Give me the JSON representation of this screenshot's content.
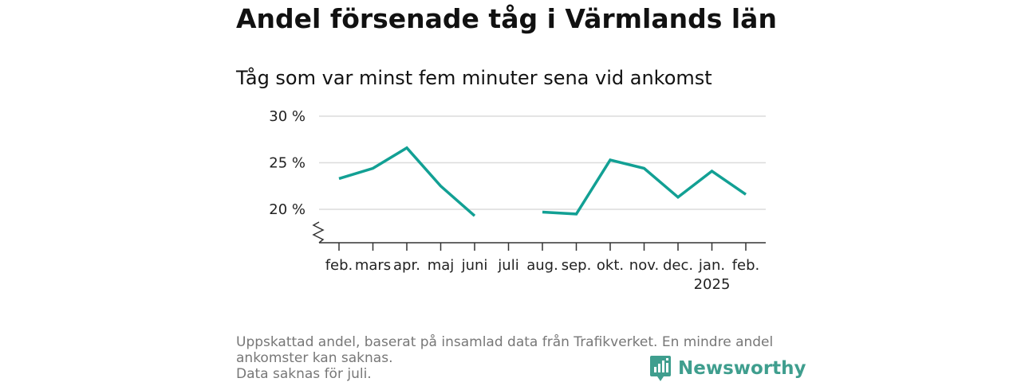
{
  "title": "Andel försenade tåg i Värmlands län",
  "subtitle": "Tåg som var minst fem minuter sena vid ankomst",
  "footnote_lines": [
    "Uppskattad andel, baserat på insamlad data från Trafikverket. En mindre andel",
    "ankomster kan saknas.",
    "Data saknas för juli."
  ],
  "brand": {
    "name": "Newsworthy",
    "color": "#3f9e8e"
  },
  "colors": {
    "line": "#12a094",
    "grid": "#dcdcdc",
    "axis": "#333333"
  },
  "chart_data": {
    "type": "line",
    "title": "Andel försenade tåg i Värmlands län",
    "subtitle": "Tåg som var minst fem minuter sena vid ankomst",
    "categories": [
      "feb.",
      "mars",
      "apr.",
      "maj",
      "juni",
      "juli",
      "aug.",
      "sep.",
      "okt.",
      "nov.",
      "dec.",
      "jan.",
      "feb."
    ],
    "category_sublabels": [
      "",
      "",
      "",
      "",
      "",
      "",
      "",
      "",
      "",
      "",
      "",
      "2025",
      ""
    ],
    "series": [
      {
        "values": [
          23.3,
          24.4,
          26.6,
          22.5,
          19.3,
          null,
          19.7,
          19.5,
          25.3,
          24.4,
          21.3,
          24.1,
          21.6
        ]
      }
    ],
    "yticks": [
      20,
      25,
      30
    ],
    "ytick_labels": [
      "20 %",
      "25 %",
      "30 %"
    ],
    "ylim": [
      16.5,
      30
    ],
    "y_axis_break": true,
    "grid": true,
    "legend": "none"
  }
}
